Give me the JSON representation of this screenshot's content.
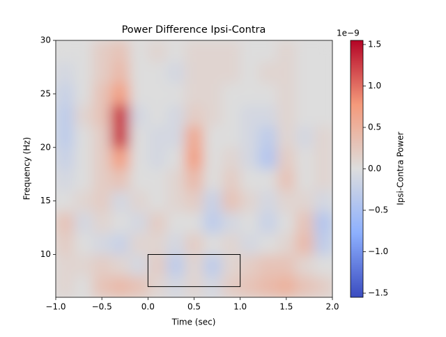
{
  "chart_data": {
    "type": "heatmap",
    "title": "Power Difference Ipsi-Contra",
    "x_label": "Time (sec)",
    "y_label": "Frequency (Hz)",
    "colorbar_label": "Ipsi-Contra Power",
    "colorbar_offset": "1e−9",
    "colormap": "coolwarm",
    "x": [
      -0.9,
      -0.7,
      -0.5,
      -0.3,
      -0.1,
      0.1,
      0.3,
      0.5,
      0.7,
      0.9,
      1.1,
      1.3,
      1.5,
      1.7,
      1.9
    ],
    "y": [
      7,
      9,
      11,
      13,
      15,
      17,
      19,
      21,
      23,
      25,
      27,
      29
    ],
    "values": [
      [
        0.1,
        0.0,
        0.3,
        0.4,
        0.3,
        0.1,
        -0.1,
        0.1,
        -0.1,
        0.2,
        0.3,
        0.4,
        0.5,
        0.3,
        0.2
      ],
      [
        0.1,
        0.1,
        0.2,
        0.1,
        -0.1,
        0.2,
        -0.3,
        0.1,
        -0.3,
        0.1,
        0.2,
        0.3,
        0.3,
        0.1,
        0.0
      ],
      [
        0.2,
        0.0,
        -0.1,
        -0.2,
        0.1,
        0.1,
        -0.1,
        0.2,
        0.0,
        0.1,
        -0.1,
        0.0,
        0.1,
        0.4,
        -0.3
      ],
      [
        0.3,
        -0.1,
        0.1,
        0.0,
        -0.1,
        0.2,
        0.0,
        0.0,
        -0.3,
        -0.1,
        0.0,
        -0.2,
        0.0,
        0.3,
        -0.4
      ],
      [
        0.0,
        0.1,
        0.2,
        -0.1,
        0.1,
        0.0,
        0.1,
        0.2,
        -0.2,
        0.3,
        0.1,
        -0.1,
        0.1,
        0.1,
        -0.1
      ],
      [
        -0.1,
        0.0,
        0.2,
        0.3,
        0.0,
        0.0,
        0.1,
        0.4,
        0.0,
        0.2,
        0.0,
        0.0,
        0.3,
        0.0,
        0.1
      ],
      [
        -0.2,
        0.0,
        0.2,
        0.7,
        0.0,
        -0.1,
        0.0,
        0.7,
        0.0,
        0.1,
        -0.1,
        -0.4,
        0.2,
        0.0,
        0.1
      ],
      [
        -0.3,
        0.0,
        0.2,
        1.3,
        0.0,
        -0.1,
        -0.1,
        0.6,
        0.0,
        0.0,
        -0.1,
        -0.3,
        0.1,
        -0.1,
        0.1
      ],
      [
        -0.3,
        0.1,
        0.3,
        1.3,
        -0.1,
        0.0,
        -0.1,
        0.2,
        0.1,
        0.0,
        -0.1,
        -0.1,
        0.1,
        0.0,
        0.0
      ],
      [
        -0.2,
        0.0,
        0.3,
        0.7,
        0.0,
        0.0,
        0.0,
        0.1,
        0.1,
        0.0,
        0.0,
        0.0,
        0.1,
        0.0,
        0.0
      ],
      [
        -0.1,
        0.0,
        0.2,
        0.4,
        0.0,
        0.0,
        -0.1,
        0.1,
        0.1,
        0.1,
        0.0,
        0.1,
        0.1,
        0.0,
        0.0
      ],
      [
        0.0,
        0.0,
        0.2,
        0.3,
        0.0,
        0.1,
        0.0,
        0.1,
        0.1,
        0.1,
        0.0,
        0.0,
        0.1,
        0.0,
        0.0
      ]
    ],
    "xlim": [
      -1,
      2
    ],
    "xticks": [
      {
        "value": -1,
        "label": "−1.0"
      },
      {
        "value": -0.5,
        "label": "−0.5"
      },
      {
        "value": 0,
        "label": "0.0"
      },
      0.5,
      {
        "value": 1,
        "label": "1.0"
      },
      1.5,
      {
        "value": 2,
        "label": "2.0"
      }
    ],
    "ylim": [
      6,
      30
    ],
    "yticks": [
      10,
      15,
      20,
      25,
      30
    ],
    "clim": [
      -1.55,
      1.55
    ],
    "cticks": [
      {
        "value": -1.5,
        "label": "−1.5"
      },
      {
        "value": -1,
        "label": "−1.0"
      },
      {
        "value": -0.5,
        "label": "−0.5"
      },
      {
        "value": 0,
        "label": "0.0"
      },
      0.5,
      {
        "value": 1,
        "label": "1.0"
      },
      1.5
    ],
    "box": {
      "x": [
        0,
        1
      ],
      "y": [
        7,
        10
      ]
    }
  }
}
